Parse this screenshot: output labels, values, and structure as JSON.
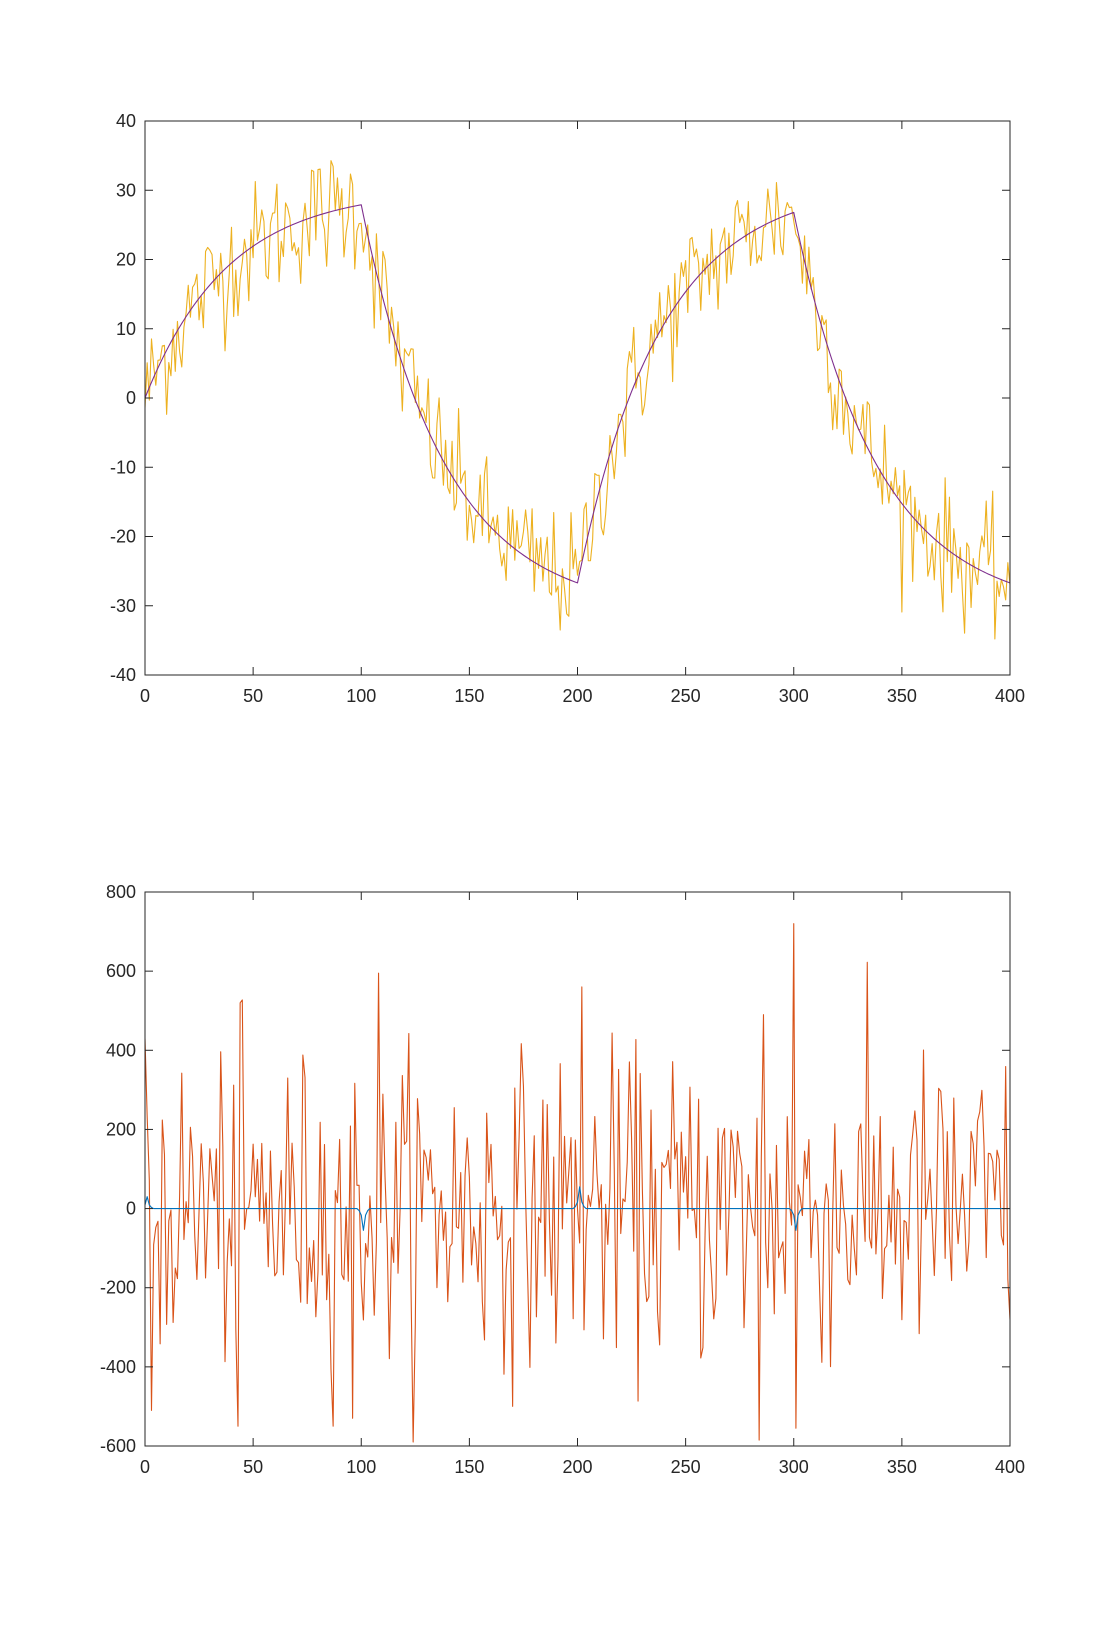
{
  "chart_data": [
    {
      "type": "line",
      "xlim": [
        0,
        400
      ],
      "ylim": [
        -40,
        40
      ],
      "x_ticks": [
        0,
        50,
        100,
        150,
        200,
        250,
        300,
        350,
        400
      ],
      "y_ticks": [
        40,
        30,
        20,
        10,
        0,
        -10,
        -20,
        -30,
        -40
      ],
      "grid": false,
      "series": [
        {
          "color": "#EDB120",
          "model": "noisy-signal",
          "shape_points": [
            [
              0,
              0
            ],
            [
              100,
              27.9
            ],
            [
              200,
              -26.7
            ],
            [
              300,
              26.8
            ],
            [
              400,
              -26.7
            ]
          ],
          "noise_amplitude": 4.5
        },
        {
          "color": "#7E2F8E",
          "model": "smooth-signal",
          "shape_points": [
            [
              0,
              0
            ],
            [
              100,
              27.9
            ],
            [
              200,
              -26.7
            ],
            [
              300,
              26.8
            ],
            [
              400,
              -26.7
            ]
          ]
        }
      ]
    },
    {
      "type": "line",
      "xlim": [
        0,
        400
      ],
      "ylim": [
        -600,
        800
      ],
      "x_ticks": [
        0,
        50,
        100,
        150,
        200,
        250,
        300,
        350,
        400
      ],
      "y_ticks": [
        800,
        600,
        400,
        200,
        0,
        -200,
        -400,
        -600
      ],
      "grid": false,
      "series": [
        {
          "color": "#D95319",
          "model": "noisy-difference",
          "approx_range": [
            -590,
            720
          ],
          "notable_peaks": [
            [
              3,
              -510
            ],
            [
              43,
              -550
            ],
            [
              44,
              520
            ],
            [
              96,
              -530
            ],
            [
              108,
              595
            ],
            [
              202,
              560
            ],
            [
              284,
              -585
            ],
            [
              286,
              490
            ],
            [
              300,
              720
            ],
            [
              301,
              -555
            ]
          ]
        },
        {
          "color": "#0072BD",
          "model": "smooth-difference",
          "baseline": 0,
          "spikes": [
            [
              1,
              30
            ],
            [
              101,
              -55
            ],
            [
              201,
              55
            ],
            [
              301,
              -55
            ]
          ]
        }
      ]
    }
  ]
}
